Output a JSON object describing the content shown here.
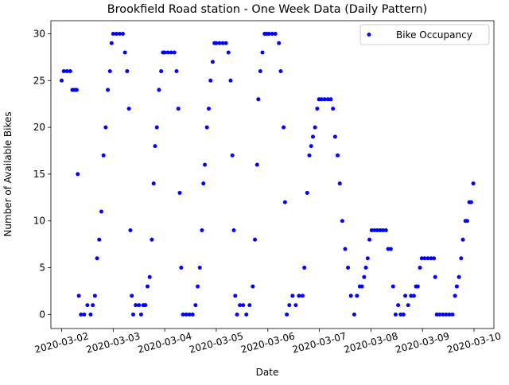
{
  "chart_data": {
    "type": "scatter",
    "title": "Brookfield Road station - One Week Data (Daily Pattern)",
    "xlabel": "Date",
    "ylabel": "Number of Available Bikes",
    "xlim": [
      "2020-03-01 19:00",
      "2020-03-10 09:15"
    ],
    "xticks": [
      "2020-03-02",
      "2020-03-03",
      "2020-03-04",
      "2020-03-05",
      "2020-03-06",
      "2020-03-07",
      "2020-03-08",
      "2020-03-09",
      "2020-03-10"
    ],
    "ylim": [
      -1.5,
      31.4
    ],
    "yticks": [
      0,
      5,
      10,
      15,
      20,
      25,
      30
    ],
    "legend": "upper right",
    "x": [
      "2020-03-02 00:00",
      "2020-03-02 01:00",
      "2020-03-02 02:30",
      "2020-03-02 04:00",
      "2020-03-02 05:00",
      "2020-03-02 06:00",
      "2020-03-02 07:00",
      "2020-03-02 07:30",
      "2020-03-02 08:00",
      "2020-03-02 09:00",
      "2020-03-02 10:30",
      "2020-03-02 12:00",
      "2020-03-02 13:30",
      "2020-03-02 14:30",
      "2020-03-02 15:30",
      "2020-03-02 16:30",
      "2020-03-02 17:30",
      "2020-03-02 18:30",
      "2020-03-02 19:30",
      "2020-03-02 20:30",
      "2020-03-02 21:30",
      "2020-03-02 22:30",
      "2020-03-02 23:15",
      "2020-03-03 00:00",
      "2020-03-03 01:30",
      "2020-03-03 03:00",
      "2020-03-03 04:30",
      "2020-03-03 05:30",
      "2020-03-03 06:30",
      "2020-03-03 07:20",
      "2020-03-03 08:00",
      "2020-03-03 08:40",
      "2020-03-03 09:20",
      "2020-03-03 10:30",
      "2020-03-03 12:00",
      "2020-03-03 13:00",
      "2020-03-03 14:00",
      "2020-03-03 15:00",
      "2020-03-03 16:00",
      "2020-03-03 17:00",
      "2020-03-03 18:00",
      "2020-03-03 18:50",
      "2020-03-03 19:30",
      "2020-03-03 20:20",
      "2020-03-03 21:20",
      "2020-03-03 22:20",
      "2020-03-03 23:10",
      "2020-03-04 00:00",
      "2020-03-04 01:30",
      "2020-03-04 03:00",
      "2020-03-04 04:30",
      "2020-03-04 05:30",
      "2020-03-04 06:20",
      "2020-03-04 07:00",
      "2020-03-04 07:40",
      "2020-03-04 08:30",
      "2020-03-04 10:00",
      "2020-03-04 11:30",
      "2020-03-04 13:00",
      "2020-03-04 14:20",
      "2020-03-04 15:20",
      "2020-03-04 16:20",
      "2020-03-04 17:20",
      "2020-03-04 18:00",
      "2020-03-04 18:40",
      "2020-03-04 19:40",
      "2020-03-04 20:30",
      "2020-03-04 21:20",
      "2020-03-04 22:20",
      "2020-03-04 23:10",
      "2020-03-05 00:00",
      "2020-03-05 01:30",
      "2020-03-05 03:00",
      "2020-03-05 04:30",
      "2020-03-05 05:40",
      "2020-03-05 06:40",
      "2020-03-05 07:30",
      "2020-03-05 08:10",
      "2020-03-05 08:50",
      "2020-03-05 09:40",
      "2020-03-05 11:00",
      "2020-03-05 12:30",
      "2020-03-05 14:00",
      "2020-03-05 15:30",
      "2020-03-05 17:00",
      "2020-03-05 18:00",
      "2020-03-05 19:00",
      "2020-03-05 19:35",
      "2020-03-05 20:30",
      "2020-03-05 21:30",
      "2020-03-05 22:30",
      "2020-03-05 23:30",
      "2020-03-06 00:30",
      "2020-03-06 02:00",
      "2020-03-06 03:30",
      "2020-03-06 05:10",
      "2020-03-06 06:00",
      "2020-03-06 07:20",
      "2020-03-06 08:00",
      "2020-03-06 08:50",
      "2020-03-06 10:00",
      "2020-03-06 11:30",
      "2020-03-06 13:00",
      "2020-03-06 14:30",
      "2020-03-06 16:10",
      "2020-03-06 17:00",
      "2020-03-06 18:20",
      "2020-03-06 19:20",
      "2020-03-06 20:10",
      "2020-03-06 21:00",
      "2020-03-06 22:00",
      "2020-03-06 23:00",
      "2020-03-06 23:50",
      "2020-03-07 01:00",
      "2020-03-07 02:30",
      "2020-03-07 04:00",
      "2020-03-07 05:20",
      "2020-03-07 06:20",
      "2020-03-07 07:20",
      "2020-03-07 08:30",
      "2020-03-07 09:30",
      "2020-03-07 10:40",
      "2020-03-07 12:00",
      "2020-03-07 13:20",
      "2020-03-07 14:40",
      "2020-03-07 16:15",
      "2020-03-07 17:30",
      "2020-03-07 18:50",
      "2020-03-07 19:50",
      "2020-03-07 20:50",
      "2020-03-07 21:40",
      "2020-03-07 22:30",
      "2020-03-07 23:20",
      "2020-03-08 00:20",
      "2020-03-08 01:40",
      "2020-03-08 03:00",
      "2020-03-08 04:20",
      "2020-03-08 05:40",
      "2020-03-08 07:00",
      "2020-03-08 08:00",
      "2020-03-08 09:15",
      "2020-03-08 10:20",
      "2020-03-08 11:30",
      "2020-03-08 12:40",
      "2020-03-08 13:50",
      "2020-03-08 15:10",
      "2020-03-08 16:00",
      "2020-03-08 17:20",
      "2020-03-08 18:40",
      "2020-03-08 20:00",
      "2020-03-08 21:00",
      "2020-03-08 21:50",
      "2020-03-08 22:50",
      "2020-03-08 23:40",
      "2020-03-09 01:00",
      "2020-03-09 02:30",
      "2020-03-09 04:00",
      "2020-03-09 05:20",
      "2020-03-09 05:55",
      "2020-03-09 06:40",
      "2020-03-09 08:00",
      "2020-03-09 09:30",
      "2020-03-09 11:00",
      "2020-03-09 12:30",
      "2020-03-09 14:00",
      "2020-03-09 15:10",
      "2020-03-09 16:00",
      "2020-03-09 17:00",
      "2020-03-09 18:00",
      "2020-03-09 18:50",
      "2020-03-09 20:00",
      "2020-03-09 20:50",
      "2020-03-09 21:50",
      "2020-03-09 22:40",
      "2020-03-09 23:40"
    ],
    "series": [
      {
        "name": "Bike Occupancy",
        "color": "#0000ff",
        "values": [
          25,
          26,
          26,
          26,
          24,
          24,
          24,
          15,
          2,
          0,
          0,
          1,
          0,
          1,
          2,
          6,
          8,
          11,
          17,
          20,
          24,
          26,
          29,
          30,
          30,
          30,
          30,
          28,
          26,
          22,
          9,
          2,
          0,
          1,
          1,
          0,
          1,
          1,
          3,
          4,
          8,
          14,
          18,
          20,
          24,
          26,
          28,
          28,
          28,
          28,
          28,
          26,
          22,
          13,
          5,
          0,
          0,
          0,
          0,
          1,
          3,
          5,
          9,
          14,
          16,
          20,
          22,
          25,
          27,
          29,
          29,
          29,
          29,
          29,
          28,
          25,
          17,
          9,
          2,
          0,
          1,
          1,
          0,
          1,
          3,
          8,
          16,
          23,
          26,
          28,
          30,
          30,
          30,
          30,
          30,
          29,
          26,
          20,
          12,
          0,
          1,
          2,
          1,
          2,
          2,
          5,
          13,
          17,
          18,
          19,
          20,
          22,
          23,
          23,
          23,
          23,
          23,
          22,
          19,
          17,
          14,
          10,
          7,
          5,
          2,
          0,
          2,
          3,
          3,
          4,
          5,
          6,
          8,
          9,
          9,
          9,
          9,
          9,
          9,
          7,
          7,
          3,
          0,
          1,
          0,
          0,
          2,
          1,
          2,
          2,
          3,
          3,
          5,
          6,
          6,
          6,
          6,
          6,
          4,
          0,
          0,
          0,
          0,
          0,
          0,
          2,
          3,
          4,
          6,
          8,
          10,
          10,
          12,
          12,
          14
        ]
      }
    ]
  }
}
